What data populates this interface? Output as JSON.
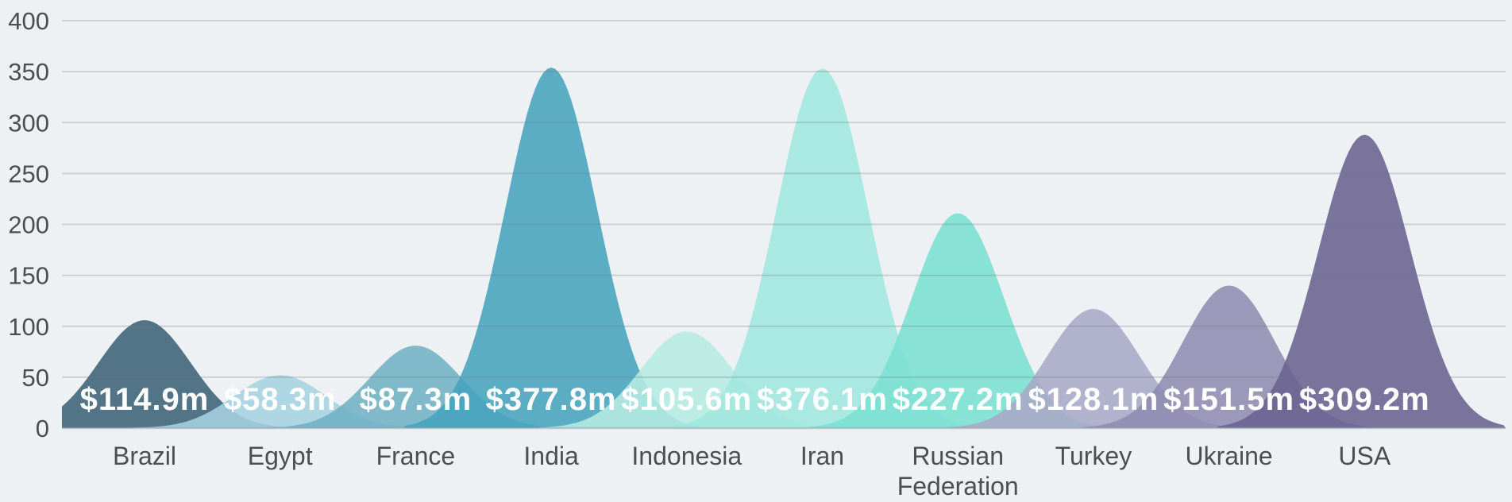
{
  "chart_data": {
    "type": "area",
    "subtype": "bell-curve-ridges",
    "title": "",
    "xlabel": "",
    "ylabel": "",
    "legend_position": "none",
    "grid": true,
    "ylim": [
      0,
      400
    ],
    "yticks": [
      0,
      50,
      100,
      150,
      200,
      250,
      300,
      350,
      400
    ],
    "categories": [
      "Brazil",
      "Egypt",
      "France",
      "India",
      "Indonesia",
      "Iran",
      "Russian Federation",
      "Turkey",
      "Ukraine",
      "USA"
    ],
    "value_labels": [
      "$114.9m",
      "$58.3m",
      "$87.3m",
      "$377.8m",
      "$105.6m",
      "$376.1m",
      "$227.2m",
      "$128.1m",
      "$151.5m",
      "$309.2m"
    ],
    "values_million_usd": [
      114.9,
      58.3,
      87.3,
      377.8,
      105.6,
      376.1,
      227.2,
      128.1,
      151.5,
      309.2
    ],
    "peak_heights_axis_units": [
      106,
      52,
      81,
      354,
      95,
      353,
      211,
      117,
      140,
      288
    ],
    "colors": [
      "#3e6176",
      "#a6d2e0",
      "#6fb0c4",
      "#47a3bd",
      "#b6eae3",
      "#a0e7df",
      "#7bdfd2",
      "#a9a9c6",
      "#8f8bb0",
      "#6a6290"
    ]
  },
  "style": {
    "background": "#edf1f4",
    "grid_color": "#6f7a82",
    "tick_text_color": "#4e4e4e",
    "category_text_color": "#4e4e4e",
    "value_text_color": "#ffffff",
    "hill_opacity": "0.88"
  }
}
